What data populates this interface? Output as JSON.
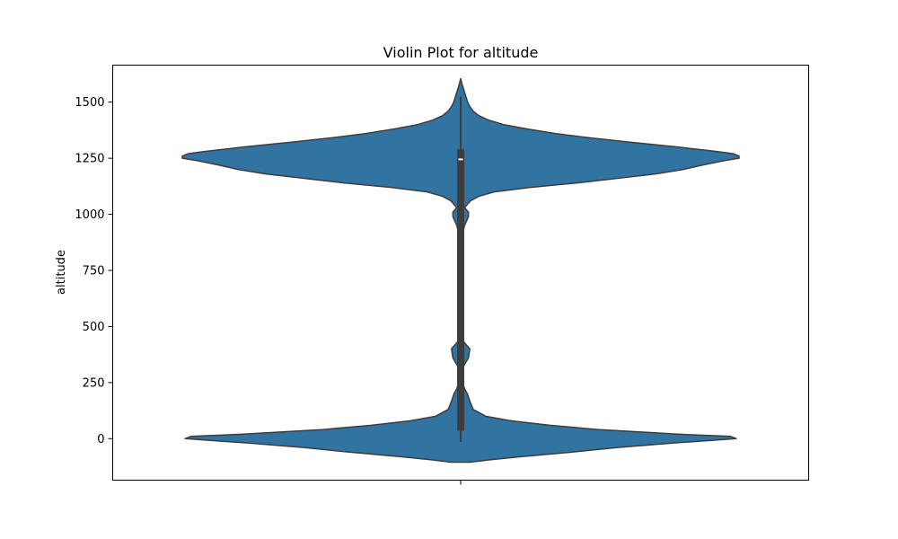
{
  "chart_data": {
    "type": "violin",
    "title": "Violin Plot for altitude",
    "xlabel": "",
    "ylabel": "altitude",
    "ylim": [
      -185,
      1665
    ],
    "yticks": [
      0,
      250,
      500,
      750,
      1000,
      1250,
      1500
    ],
    "grid": false,
    "legend": "none",
    "color": "#3274a1",
    "edge_color": "#3d3d3d",
    "summary": {
      "min": -15,
      "q1": 35,
      "median": 1245,
      "q3": 1290,
      "whisker_high": 1525,
      "whisker_low": -15,
      "kde_min": -105,
      "kde_max": 1605
    },
    "density_profile": {
      "y": [
        -105,
        -95,
        -80,
        -60,
        -40,
        -20,
        0,
        10,
        20,
        40,
        60,
        80,
        100,
        130,
        160,
        200,
        220,
        250,
        280,
        320,
        360,
        400,
        430,
        460,
        500,
        600,
        700,
        800,
        900,
        950,
        990,
        1010,
        1030,
        1060,
        1080,
        1100,
        1120,
        1140,
        1160,
        1180,
        1200,
        1220,
        1240,
        1250,
        1260,
        1270,
        1280,
        1300,
        1320,
        1340,
        1360,
        1380,
        1400,
        1420,
        1440,
        1460,
        1480,
        1500,
        1520,
        1540,
        1560,
        1580,
        1605
      ],
      "density": [
        0.034,
        0.1,
        0.22,
        0.4,
        0.56,
        0.76,
        0.99,
        0.97,
        0.78,
        0.5,
        0.32,
        0.18,
        0.09,
        0.045,
        0.035,
        0.024,
        0.015,
        0.006,
        0.0025,
        0.009,
        0.028,
        0.033,
        0.012,
        0.003,
        0.0012,
        0.001,
        0.001,
        0.0012,
        0.004,
        0.014,
        0.028,
        0.028,
        0.014,
        0.035,
        0.065,
        0.12,
        0.25,
        0.42,
        0.56,
        0.7,
        0.8,
        0.87,
        0.95,
        1.0,
        1.0,
        0.98,
        0.92,
        0.78,
        0.62,
        0.47,
        0.34,
        0.24,
        0.155,
        0.1,
        0.065,
        0.045,
        0.033,
        0.025,
        0.02,
        0.015,
        0.01,
        0.005,
        0.0
      ]
    }
  }
}
